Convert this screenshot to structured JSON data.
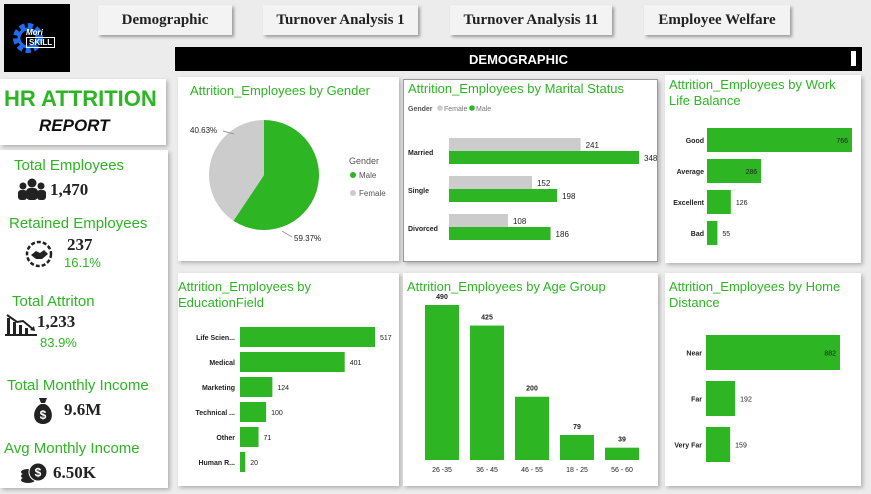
{
  "logo": {
    "line1": "Mori",
    "line2": "SKILL"
  },
  "nav": [
    "Demographic",
    "Turnover Analysis 1",
    "Turnover Analysis 11",
    "Employee Welfare"
  ],
  "banner": "DEMOGRAPHIC",
  "report": {
    "title": "HR ATTRITION",
    "subtitle": "REPORT"
  },
  "kpis": [
    {
      "label": "Total Employees",
      "value": "1,470",
      "icon": "people-icon"
    },
    {
      "label": "Retained Employees",
      "value": "237",
      "pct": "16.1%",
      "icon": "handshake-icon"
    },
    {
      "label": "Total Attriton",
      "value": "1,233",
      "pct": "83.9%",
      "icon": "decline-chart-icon"
    },
    {
      "label": "Total Monthly Income",
      "value": "9.6M",
      "icon": "money-bag-icon"
    },
    {
      "label": "Avg Monthly Income",
      "value": "6.50K",
      "icon": "coins-icon"
    }
  ],
  "colors": {
    "green": "#2db523",
    "grey": "#cccccc",
    "dark": "#222222"
  },
  "chart_data": [
    {
      "type": "pie",
      "title": "Attrition_Employees by Gender",
      "legend_title": "Gender",
      "categories": [
        "Male",
        "Female"
      ],
      "values": [
        59.37,
        40.63
      ],
      "labels": [
        "59.37%",
        "40.63%"
      ],
      "legend_position": "right"
    },
    {
      "type": "bar",
      "orientation": "horizontal",
      "title": "Attrition_Employees by Marital Status",
      "legend_title": "Gender",
      "categories": [
        "Married",
        "Single",
        "Divorced"
      ],
      "series": [
        {
          "name": "Female",
          "values": [
            241,
            152,
            108
          ]
        },
        {
          "name": "Male",
          "values": [
            348,
            198,
            186
          ]
        }
      ],
      "legend_position": "top-left"
    },
    {
      "type": "bar",
      "orientation": "horizontal",
      "title": "Attrition_Employees by Work Life Balance",
      "categories": [
        "Good",
        "Average",
        "Excellent",
        "Bad"
      ],
      "values": [
        766,
        286,
        126,
        55
      ]
    },
    {
      "type": "bar",
      "orientation": "horizontal",
      "title": "Attrition_Employees by EducationField",
      "categories": [
        "Life Scien...",
        "Medical",
        "Marketing",
        "Technical ...",
        "Other",
        "Human R..."
      ],
      "values": [
        517,
        401,
        124,
        100,
        71,
        20
      ]
    },
    {
      "type": "bar",
      "orientation": "vertical",
      "title": "Attrition_Employees by Age Group",
      "categories": [
        "26 -35",
        "36 - 45",
        "46 - 55",
        "18 - 25",
        "56 - 60"
      ],
      "values": [
        490,
        425,
        200,
        79,
        39
      ]
    },
    {
      "type": "bar",
      "orientation": "horizontal",
      "title": "Attrition_Employees by Home Distance",
      "categories": [
        "Near",
        "Far",
        "Very Far"
      ],
      "values": [
        882,
        192,
        159
      ]
    }
  ]
}
